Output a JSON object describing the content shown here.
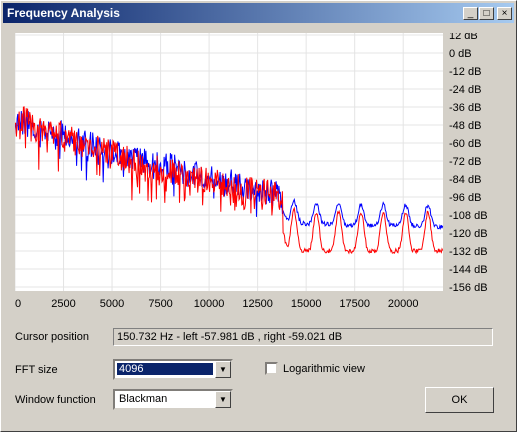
{
  "window": {
    "title": "Frequency Analysis"
  },
  "titlebar_buttons": {
    "minimize": "_",
    "maximize": "□",
    "close": "×"
  },
  "cursor": {
    "label": "Cursor position",
    "value": "150.732 Hz  -  left -57.981 dB , right -59.021 dB"
  },
  "fft": {
    "label": "FFT size",
    "value": "4096"
  },
  "window_function": {
    "label": "Window function",
    "value": "Blackman"
  },
  "log_view": {
    "label": "Logarithmic view",
    "checked": false
  },
  "ok_button": {
    "label": "OK"
  },
  "colors": {
    "left": "#0000ff",
    "right": "#ff0000",
    "plot_bg": "#ffffff"
  },
  "chart_data": {
    "type": "line",
    "x_ticks": [
      "0",
      "2500",
      "5000",
      "7500",
      "10000",
      "12500",
      "15000",
      "17500",
      "20000"
    ],
    "y_ticks": [
      "12 dB",
      "0 dB",
      "-12 dB",
      "-24 dB",
      "-36 dB",
      "-48 dB",
      "-60 dB",
      "-72 dB",
      "-84 dB",
      "-96 dB",
      "-108 dB",
      "-120 dB",
      "-132 dB",
      "-144 dB",
      "-156 dB"
    ],
    "xlim": [
      0,
      22050
    ],
    "ylim": [
      -160,
      12
    ],
    "grid": true,
    "series": [
      {
        "color": "#0000ff",
        "x": [
          0,
          500,
          1200,
          2000,
          3000,
          4000,
          5000,
          6000,
          7000,
          8000,
          9000,
          10000,
          11000,
          12000,
          13000,
          13800,
          14000,
          15000,
          16000,
          17000,
          18000,
          19000,
          20000,
          21000,
          22000
        ],
        "y": [
          -50,
          -45,
          -55,
          -50,
          -58,
          -62,
          -65,
          -70,
          -72,
          -75,
          -80,
          -82,
          -86,
          -90,
          -92,
          -96,
          -104,
          -106,
          -106,
          -107,
          -107,
          -107,
          -107,
          -107,
          -108
        ]
      },
      {
        "color": "#ff0000",
        "x": [
          0,
          500,
          1200,
          2000,
          3000,
          4000,
          5000,
          6000,
          7000,
          8000,
          9000,
          10000,
          11000,
          12000,
          13000,
          13800,
          14000,
          15000,
          16000,
          17000,
          18000,
          19000,
          20000,
          21000,
          22000
        ],
        "y": [
          -48,
          -44,
          -52,
          -52,
          -58,
          -63,
          -67,
          -72,
          -76,
          -79,
          -83,
          -86,
          -88,
          -90,
          -92,
          -98,
          -110,
          -112,
          -112,
          -112,
          -112,
          -112,
          -112,
          -112,
          -112
        ]
      }
    ]
  }
}
